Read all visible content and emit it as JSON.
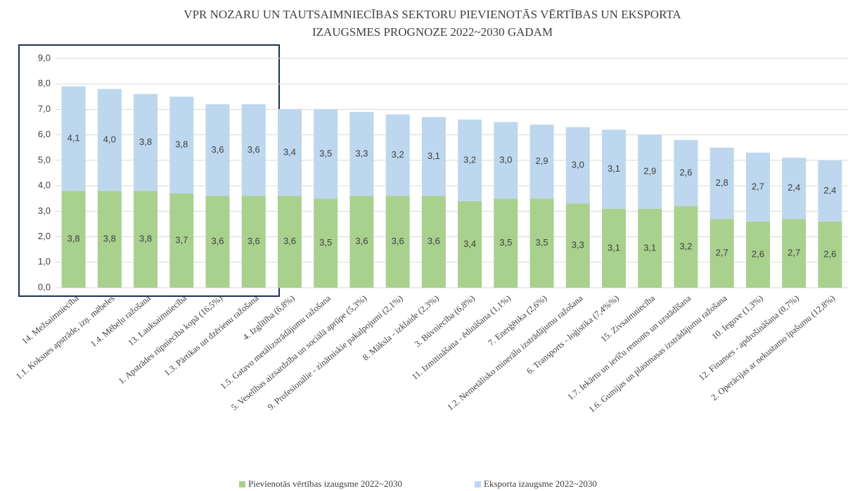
{
  "chart_data": {
    "type": "stacked_bar",
    "title": [
      "VPR NOZARU UN TAUTSAIMNIECĪBAS SEKTORU PIEVIENOTĀS VĒRTĪBAS UN EKSPORTA",
      "IZAUGSMES PROGNOZE  2022~2030 GADAM"
    ],
    "categories": [
      "14. Mežsaimniecība",
      "1.1. Koksnes apstrāde, izņ. mēbeles",
      "1.4. Mēbeļu ražošana",
      "13. Lauksaimniecība",
      "1. Apstrādes rūpniecība kopā (16,5%)",
      "1.3. Pārtikas un dzērienu ražošana",
      "4. Izglītība (6,8%)",
      "1.5. Gatavo metālizstrādājumu ražošana",
      "5. Veselības aizsardzība un sociālā aprūpe (5,3%)",
      "9. Profesionālie - zinātniskie pakalpojumi (2,1%)",
      "8. Māksla - izklaide (2,3%)",
      "3. Būvniecība (6,8%)",
      "11. Izmitināšana - ēdināšana (1,1%)",
      "7. Enerģētika (2,6%)",
      "1.2. Nemetālisko minerālu izstrādājumu ražošana",
      "6. Transports - loģistika (7,4%%)",
      "15. Zivsaimniecība",
      "1.7. Iekārtu un ierīču remonts un uzstādīšana",
      "1.6. Gumijas un plastmasas izstrādājumu ražošana",
      "10. Ieguve (1,3%)",
      "12. Finanses - apdrošināšana (0,7%)",
      "2. Operācijas ar nekustamo īpašumu (12,8%)"
    ],
    "series": [
      {
        "name": "Pievienotās vērtības izaugsme 2022~2030",
        "color": "#a9d18e",
        "values": [
          3.8,
          3.8,
          3.8,
          3.7,
          3.6,
          3.6,
          3.6,
          3.5,
          3.6,
          3.6,
          3.6,
          3.4,
          3.5,
          3.5,
          3.3,
          3.1,
          3.1,
          3.2,
          2.7,
          2.6,
          2.7,
          2.6
        ],
        "value_labels": [
          "3,8",
          "3,8",
          "3,8",
          "3,7",
          "3,6",
          "3,6",
          "3,6",
          "3,5",
          "3,6",
          "3,6",
          "3,6",
          "3,4",
          "3,5",
          "3,5",
          "3,3",
          "3,1",
          "3,1",
          "3,2",
          "2,7",
          "2,6",
          "2,7",
          "2,6"
        ]
      },
      {
        "name": "Eksporta izaugsme 2022~2030",
        "color": "#bdd7ee",
        "values": [
          4.1,
          4.0,
          3.8,
          3.8,
          3.6,
          3.6,
          3.4,
          3.5,
          3.3,
          3.2,
          3.1,
          3.2,
          3.0,
          2.9,
          3.0,
          3.1,
          2.9,
          2.6,
          2.8,
          2.7,
          2.4,
          2.4
        ],
        "value_labels": [
          "4,1",
          "4,0",
          "3,8",
          "3,8",
          "3,6",
          "3,6",
          "3,4",
          "3,5",
          "3,3",
          "3,2",
          "3,1",
          "3,2",
          "3,0",
          "2,9",
          "3,0",
          "3,1",
          "2,9",
          "2,6",
          "2,8",
          "2,7",
          "2,4",
          "2,4"
        ]
      }
    ],
    "ylim": [
      0,
      9
    ],
    "yticks": [
      {
        "value": 0,
        "label": "0,0"
      },
      {
        "value": 1,
        "label": "1,0"
      },
      {
        "value": 2,
        "label": "2,0"
      },
      {
        "value": 3,
        "label": "3,0"
      },
      {
        "value": 4,
        "label": "4,0"
      },
      {
        "value": 5,
        "label": "5,0"
      },
      {
        "value": 6,
        "label": "6,0"
      },
      {
        "value": 7,
        "label": "7,0"
      },
      {
        "value": 8,
        "label": "8,0"
      },
      {
        "value": 9,
        "label": "9,0"
      }
    ],
    "grid": true,
    "legend": "bottom"
  }
}
